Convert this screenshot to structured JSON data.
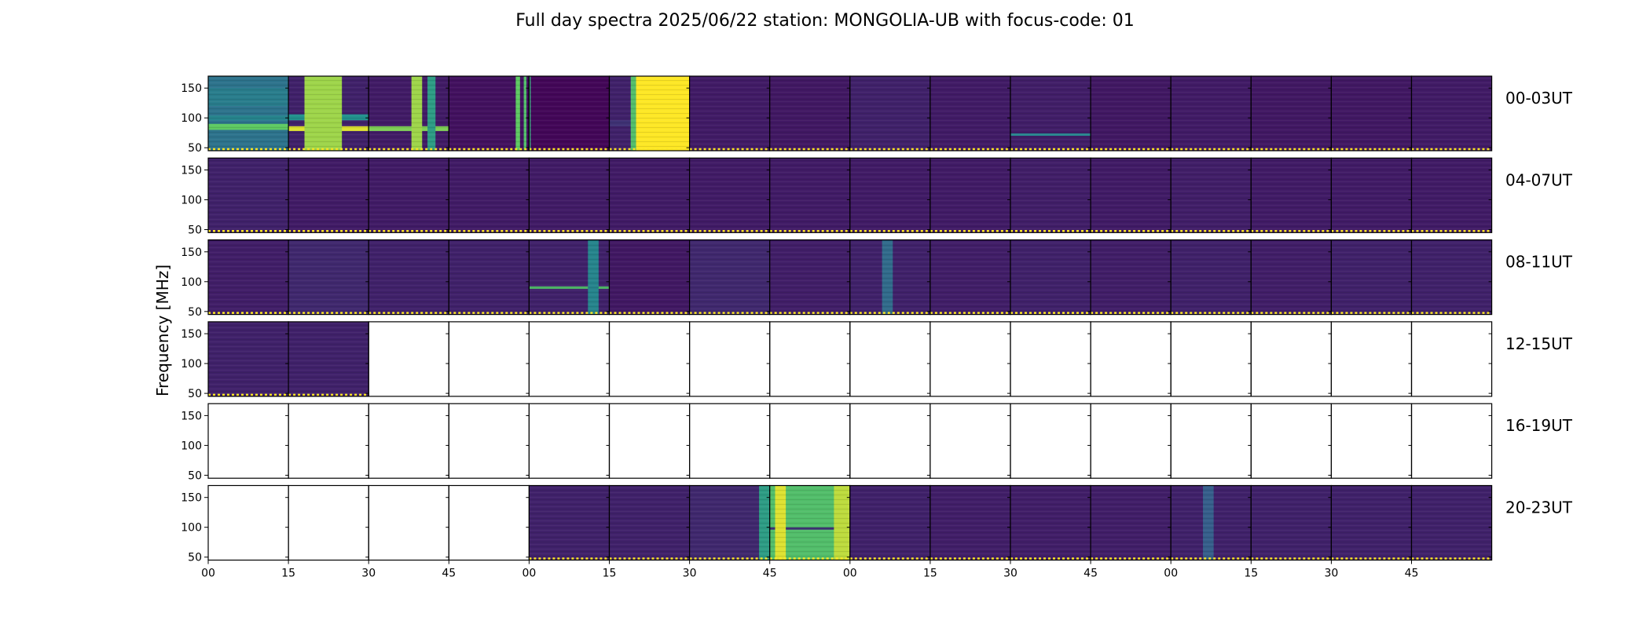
{
  "title": "Full day spectra 2025/06/22 station: MONGOLIA-UB with focus-code: 01",
  "chart_data": {
    "type": "heatmap",
    "title": "Full day spectra 2025/06/22 station: MONGOLIA-UB with focus-code: 01",
    "ylabel": "Frequency [MHz]",
    "yticks": [
      150,
      100,
      50
    ],
    "ylim": [
      45,
      170
    ],
    "xticks": [
      "00",
      "15",
      "30",
      "45",
      "00",
      "15",
      "30",
      "45",
      "00",
      "15",
      "30",
      "45",
      "00",
      "15",
      "30",
      "45"
    ],
    "minutes_per_panel": 15,
    "colormap": [
      "#440154",
      "#3b528b",
      "#21918c",
      "#5ec962",
      "#fde725"
    ],
    "rows": [
      {
        "label": "00-03UT",
        "panels": [
          {
            "has_data": true,
            "intensity": 0.38,
            "bright_bands": [
              {
                "freq": [
                  80,
                  90
                ],
                "intensity": 0.75
              },
              {
                "freq": [
                  96,
                  104
                ],
                "intensity": 0.45
              },
              {
                "freq": [
                  120,
                  150
                ],
                "intensity": 0.42
              }
            ]
          },
          {
            "has_data": true,
            "intensity": 0.1,
            "bright_bands": [
              {
                "freq": [
                  78,
                  86
                ],
                "intensity": 0.95
              },
              {
                "freq": [
                  96,
                  106
                ],
                "intensity": 0.5
              }
            ],
            "bright_columns": [
              {
                "minutes": [
                  3,
                  10
                ],
                "intensity": 0.85
              }
            ]
          },
          {
            "has_data": true,
            "intensity": 0.08,
            "bright_bands": [
              {
                "freq": [
                  78,
                  86
                ],
                "intensity": 0.8
              }
            ],
            "bright_columns": [
              {
                "minutes": [
                  8,
                  10
                ],
                "intensity": 0.85
              },
              {
                "minutes": [
                  11,
                  12.5
                ],
                "intensity": 0.55
              }
            ]
          },
          {
            "has_data": true,
            "intensity": 0.05,
            "bright_columns": [
              {
                "minutes": [
                  12.5,
                  13.3
                ],
                "intensity": 0.75
              },
              {
                "minutes": [
                  14,
                  14.5
                ],
                "intensity": 0.7
              }
            ]
          },
          {
            "has_data": true,
            "intensity": 0.02,
            "bright_columns": [
              {
                "minutes": [
                  0,
                  0.3
                ],
                "intensity": 0.6
              }
            ]
          },
          {
            "has_data": true,
            "intensity": 0.1,
            "bright_columns": [
              {
                "minutes": [
                  4,
                  5
                ],
                "intensity": 0.7
              },
              {
                "minutes": [
                  5,
                  15
                ],
                "intensity": 1.0
              }
            ],
            "dark_bands": [
              {
                "freq": [
                  86,
                  96
                ],
                "intensity": 0.15
              }
            ]
          },
          {
            "has_data": true,
            "intensity": 0.08
          },
          {
            "has_data": true,
            "intensity": 0.07
          },
          {
            "has_data": true,
            "intensity": 0.1
          },
          {
            "has_data": true,
            "intensity": 0.08
          },
          {
            "has_data": true,
            "intensity": 0.09,
            "bright_bands": [
              {
                "freq": [
                  70,
                  74
                ],
                "intensity": 0.45
              }
            ]
          },
          {
            "has_data": true,
            "intensity": 0.07
          },
          {
            "has_data": true,
            "intensity": 0.08
          },
          {
            "has_data": true,
            "intensity": 0.07
          },
          {
            "has_data": true,
            "intensity": 0.07
          },
          {
            "has_data": true,
            "intensity": 0.08
          }
        ]
      },
      {
        "label": "04-07UT",
        "panels": [
          {
            "has_data": true,
            "intensity": 0.1
          },
          {
            "has_data": true,
            "intensity": 0.08
          },
          {
            "has_data": true,
            "intensity": 0.08
          },
          {
            "has_data": true,
            "intensity": 0.08
          },
          {
            "has_data": true,
            "intensity": 0.08
          },
          {
            "has_data": true,
            "intensity": 0.08
          },
          {
            "has_data": true,
            "intensity": 0.08
          },
          {
            "has_data": true,
            "intensity": 0.08
          },
          {
            "has_data": true,
            "intensity": 0.08
          },
          {
            "has_data": true,
            "intensity": 0.08
          },
          {
            "has_data": true,
            "intensity": 0.09
          },
          {
            "has_data": true,
            "intensity": 0.08
          },
          {
            "has_data": true,
            "intensity": 0.09
          },
          {
            "has_data": true,
            "intensity": 0.08
          },
          {
            "has_data": true,
            "intensity": 0.08
          },
          {
            "has_data": true,
            "intensity": 0.08
          }
        ]
      },
      {
        "label": "08-11UT",
        "panels": [
          {
            "has_data": true,
            "intensity": 0.09
          },
          {
            "has_data": true,
            "intensity": 0.12
          },
          {
            "has_data": true,
            "intensity": 0.1
          },
          {
            "has_data": true,
            "intensity": 0.1
          },
          {
            "has_data": true,
            "intensity": 0.1,
            "bright_bands": [
              {
                "freq": [
                  88,
                  92
                ],
                "intensity": 0.7
              }
            ],
            "bright_columns": [
              {
                "minutes": [
                  11,
                  13
                ],
                "intensity": 0.45
              }
            ]
          },
          {
            "has_data": true,
            "intensity": 0.07
          },
          {
            "has_data": true,
            "intensity": 0.12
          },
          {
            "has_data": true,
            "intensity": 0.09
          },
          {
            "has_data": true,
            "intensity": 0.1,
            "bright_columns": [
              {
                "minutes": [
                  6,
                  8
                ],
                "intensity": 0.35
              }
            ]
          },
          {
            "has_data": true,
            "intensity": 0.09
          },
          {
            "has_data": true,
            "intensity": 0.1
          },
          {
            "has_data": true,
            "intensity": 0.09
          },
          {
            "has_data": true,
            "intensity": 0.1
          },
          {
            "has_data": true,
            "intensity": 0.09
          },
          {
            "has_data": true,
            "intensity": 0.1
          },
          {
            "has_data": true,
            "intensity": 0.1
          }
        ]
      },
      {
        "label": "12-15UT",
        "panels": [
          {
            "has_data": true,
            "intensity": 0.1
          },
          {
            "has_data": true,
            "intensity": 0.1
          },
          {
            "has_data": false
          },
          {
            "has_data": false
          },
          {
            "has_data": false
          },
          {
            "has_data": false
          },
          {
            "has_data": false
          },
          {
            "has_data": false
          },
          {
            "has_data": false
          },
          {
            "has_data": false
          },
          {
            "has_data": false
          },
          {
            "has_data": false
          },
          {
            "has_data": false
          },
          {
            "has_data": false
          },
          {
            "has_data": false
          },
          {
            "has_data": false
          }
        ]
      },
      {
        "label": "16-19UT",
        "panels": [
          {
            "has_data": false
          },
          {
            "has_data": false
          },
          {
            "has_data": false
          },
          {
            "has_data": false
          },
          {
            "has_data": false
          },
          {
            "has_data": false
          },
          {
            "has_data": false
          },
          {
            "has_data": false
          },
          {
            "has_data": false
          },
          {
            "has_data": false
          },
          {
            "has_data": false
          },
          {
            "has_data": false
          },
          {
            "has_data": false
          },
          {
            "has_data": false
          },
          {
            "has_data": false
          },
          {
            "has_data": false
          }
        ]
      },
      {
        "label": "20-23UT",
        "panels": [
          {
            "has_data": false
          },
          {
            "has_data": false
          },
          {
            "has_data": false
          },
          {
            "has_data": false
          },
          {
            "has_data": true,
            "intensity": 0.1
          },
          {
            "has_data": true,
            "intensity": 0.1
          },
          {
            "has_data": true,
            "intensity": 0.12,
            "bright_columns": [
              {
                "minutes": [
                  13,
                  15
                ],
                "intensity": 0.55
              }
            ]
          },
          {
            "has_data": true,
            "intensity": 0.7,
            "bright_columns": [
              {
                "minutes": [
                  1,
                  3
                ],
                "intensity": 0.95
              },
              {
                "minutes": [
                  12,
                  15
                ],
                "intensity": 0.9
              }
            ],
            "dark_bands": [
              {
                "freq": [
                  96,
                  100
                ],
                "intensity": 0.15
              }
            ]
          },
          {
            "has_data": true,
            "intensity": 0.1
          },
          {
            "has_data": true,
            "intensity": 0.09
          },
          {
            "has_data": true,
            "intensity": 0.09
          },
          {
            "has_data": true,
            "intensity": 0.09
          },
          {
            "has_data": true,
            "intensity": 0.1,
            "bright_columns": [
              {
                "minutes": [
                  6,
                  8
                ],
                "intensity": 0.3
              }
            ]
          },
          {
            "has_data": true,
            "intensity": 0.1
          },
          {
            "has_data": true,
            "intensity": 0.1
          },
          {
            "has_data": true,
            "intensity": 0.1
          }
        ]
      }
    ]
  }
}
